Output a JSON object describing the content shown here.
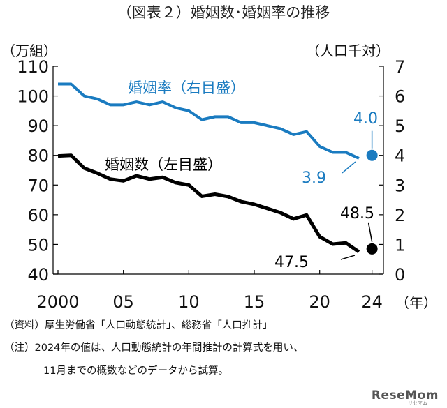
{
  "title": "（図表２）婚姻数･婚姻率の推移",
  "left_unit": "（万組）",
  "right_unit": "（人口千対）",
  "x_unit": "（年）",
  "notes": [
    "（資料）厚生労働省「人口動態統計」、総務省「人口推計」",
    "（注）2024年の値は、人口動態統計の年間推計の計算式を用い、",
    "11月までの概数などのデータから試算。"
  ],
  "logo": "ReseMom",
  "logo_sub": "リセマム",
  "colors": {
    "marriages": "#000000",
    "rate": "#1a7bc0"
  },
  "chart_data": {
    "type": "line",
    "x": [
      2000,
      2001,
      2002,
      2003,
      2004,
      2005,
      2006,
      2007,
      2008,
      2009,
      2010,
      2011,
      2012,
      2013,
      2014,
      2015,
      2016,
      2017,
      2018,
      2019,
      2020,
      2021,
      2022,
      2023
    ],
    "x_ticks": [
      2000,
      2005,
      2010,
      2015,
      2020,
      2024
    ],
    "x_tick_labels": [
      "2000",
      "05",
      "10",
      "15",
      "20",
      "24"
    ],
    "xlim": [
      2000,
      2024.5
    ],
    "y_left": {
      "lim": [
        40,
        110
      ],
      "ticks": [
        40,
        50,
        60,
        70,
        80,
        90,
        100,
        110
      ]
    },
    "y_right": {
      "lim": [
        0,
        7
      ],
      "ticks": [
        0,
        1,
        2,
        3,
        4,
        5,
        6,
        7
      ]
    },
    "grid": false,
    "series": [
      {
        "name": "婚姻数（左目盛）",
        "axis": "left",
        "values": [
          79.8,
          80.0,
          75.7,
          74.0,
          72.0,
          71.4,
          73.1,
          72.0,
          72.6,
          70.8,
          70.0,
          66.2,
          66.9,
          66.1,
          64.4,
          63.5,
          62.1,
          60.7,
          58.6,
          59.9,
          52.6,
          50.1,
          50.5,
          47.5
        ],
        "estimate": {
          "x": 2024,
          "value": 48.5
        },
        "labels": {
          "last": "47.5",
          "estimate": "48.5"
        }
      },
      {
        "name": "婚姻率（右目盛）",
        "axis": "right",
        "values": [
          6.4,
          6.4,
          6.0,
          5.9,
          5.7,
          5.7,
          5.8,
          5.7,
          5.8,
          5.6,
          5.5,
          5.2,
          5.3,
          5.3,
          5.1,
          5.1,
          5.0,
          4.9,
          4.7,
          4.8,
          4.3,
          4.1,
          4.1,
          3.9
        ],
        "estimate": {
          "x": 2024,
          "value": 4.0
        },
        "labels": {
          "last": "3.9",
          "estimate": "4.0"
        }
      }
    ]
  }
}
